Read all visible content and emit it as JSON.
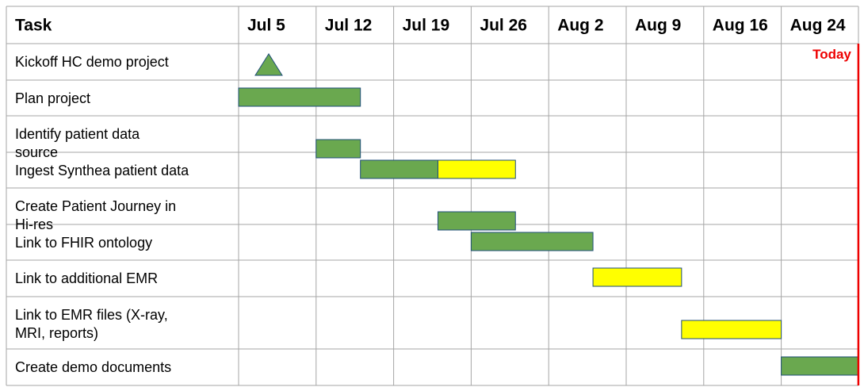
{
  "chart_data": {
    "type": "gantt",
    "task_header": "Task",
    "columns": [
      "Jul 5",
      "Jul 12",
      "Jul 19",
      "Jul 26",
      "Aug 2",
      "Aug 9",
      "Aug 16",
      "Aug 24"
    ],
    "today_label": "Today",
    "today": "Aug 31",
    "colors": {
      "complete": "#6aa84f",
      "in_progress": "#ffff00",
      "today": "#ee0000",
      "grid": "#a6a6a6",
      "bar_border": "#1f4e79"
    },
    "tasks": [
      {
        "label": "Kickoff HC demo project",
        "milestone": "Jul 5",
        "segments": []
      },
      {
        "label": "Plan project",
        "segments": [
          {
            "start": "Jul 5",
            "end": "Jul 16",
            "status": "complete"
          }
        ]
      },
      {
        "label": "Identify patient data source",
        "segments": [
          {
            "start": "Jul 12",
            "end": "Jul 16",
            "status": "complete"
          }
        ]
      },
      {
        "label": "Ingest Synthea patient data",
        "segments": [
          {
            "start": "Jul 16",
            "end": "Jul 23",
            "status": "complete"
          },
          {
            "start": "Jul 23",
            "end": "Jul 30",
            "status": "in_progress"
          }
        ]
      },
      {
        "label": "Create Patient Journey in Hi-res",
        "segments": [
          {
            "start": "Jul 23",
            "end": "Jul 30",
            "status": "complete"
          }
        ]
      },
      {
        "label": "Link to FHIR ontology",
        "segments": [
          {
            "start": "Jul 26",
            "end": "Aug 6",
            "status": "complete"
          }
        ]
      },
      {
        "label": "Link to additional EMR",
        "segments": [
          {
            "start": "Aug 6",
            "end": "Aug 14",
            "status": "in_progress"
          }
        ]
      },
      {
        "label": "Link to EMR files (X-ray, MRI, reports)",
        "segments": [
          {
            "start": "Aug 14",
            "end": "Aug 24",
            "status": "in_progress"
          }
        ]
      },
      {
        "label": "Create demo documents",
        "segments": [
          {
            "start": "Aug 24",
            "end": "Aug 31",
            "status": "complete"
          }
        ]
      }
    ]
  }
}
